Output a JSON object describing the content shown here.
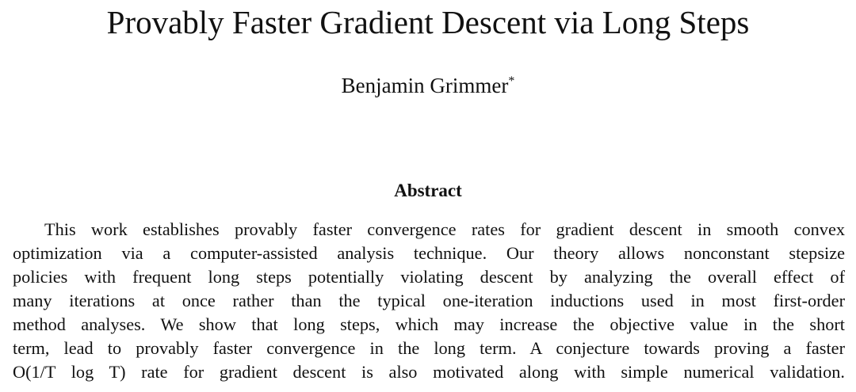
{
  "header": {
    "title": "Provably Faster Gradient Descent via Long Steps",
    "author": {
      "name": "Benjamin Grimmer",
      "mark": "*"
    }
  },
  "abstract": {
    "heading": "Abstract",
    "lines": [
      "This work establishes provably faster convergence rates for gradient descent in smooth convex",
      "optimization via a computer-assisted analysis technique. Our theory allows nonconstant stepsize",
      "policies with frequent long steps potentially violating descent by analyzing the overall effect of",
      "many iterations at once rather than the typical one-iteration inductions used in most first-order",
      "method analyses. We show that long steps, which may increase the objective value in the short",
      "term, lead to provably faster convergence in the long term. A conjecture towards proving a faster",
      "O(1/T log T) rate for gradient descent is also motivated along with simple numerical validation."
    ]
  }
}
